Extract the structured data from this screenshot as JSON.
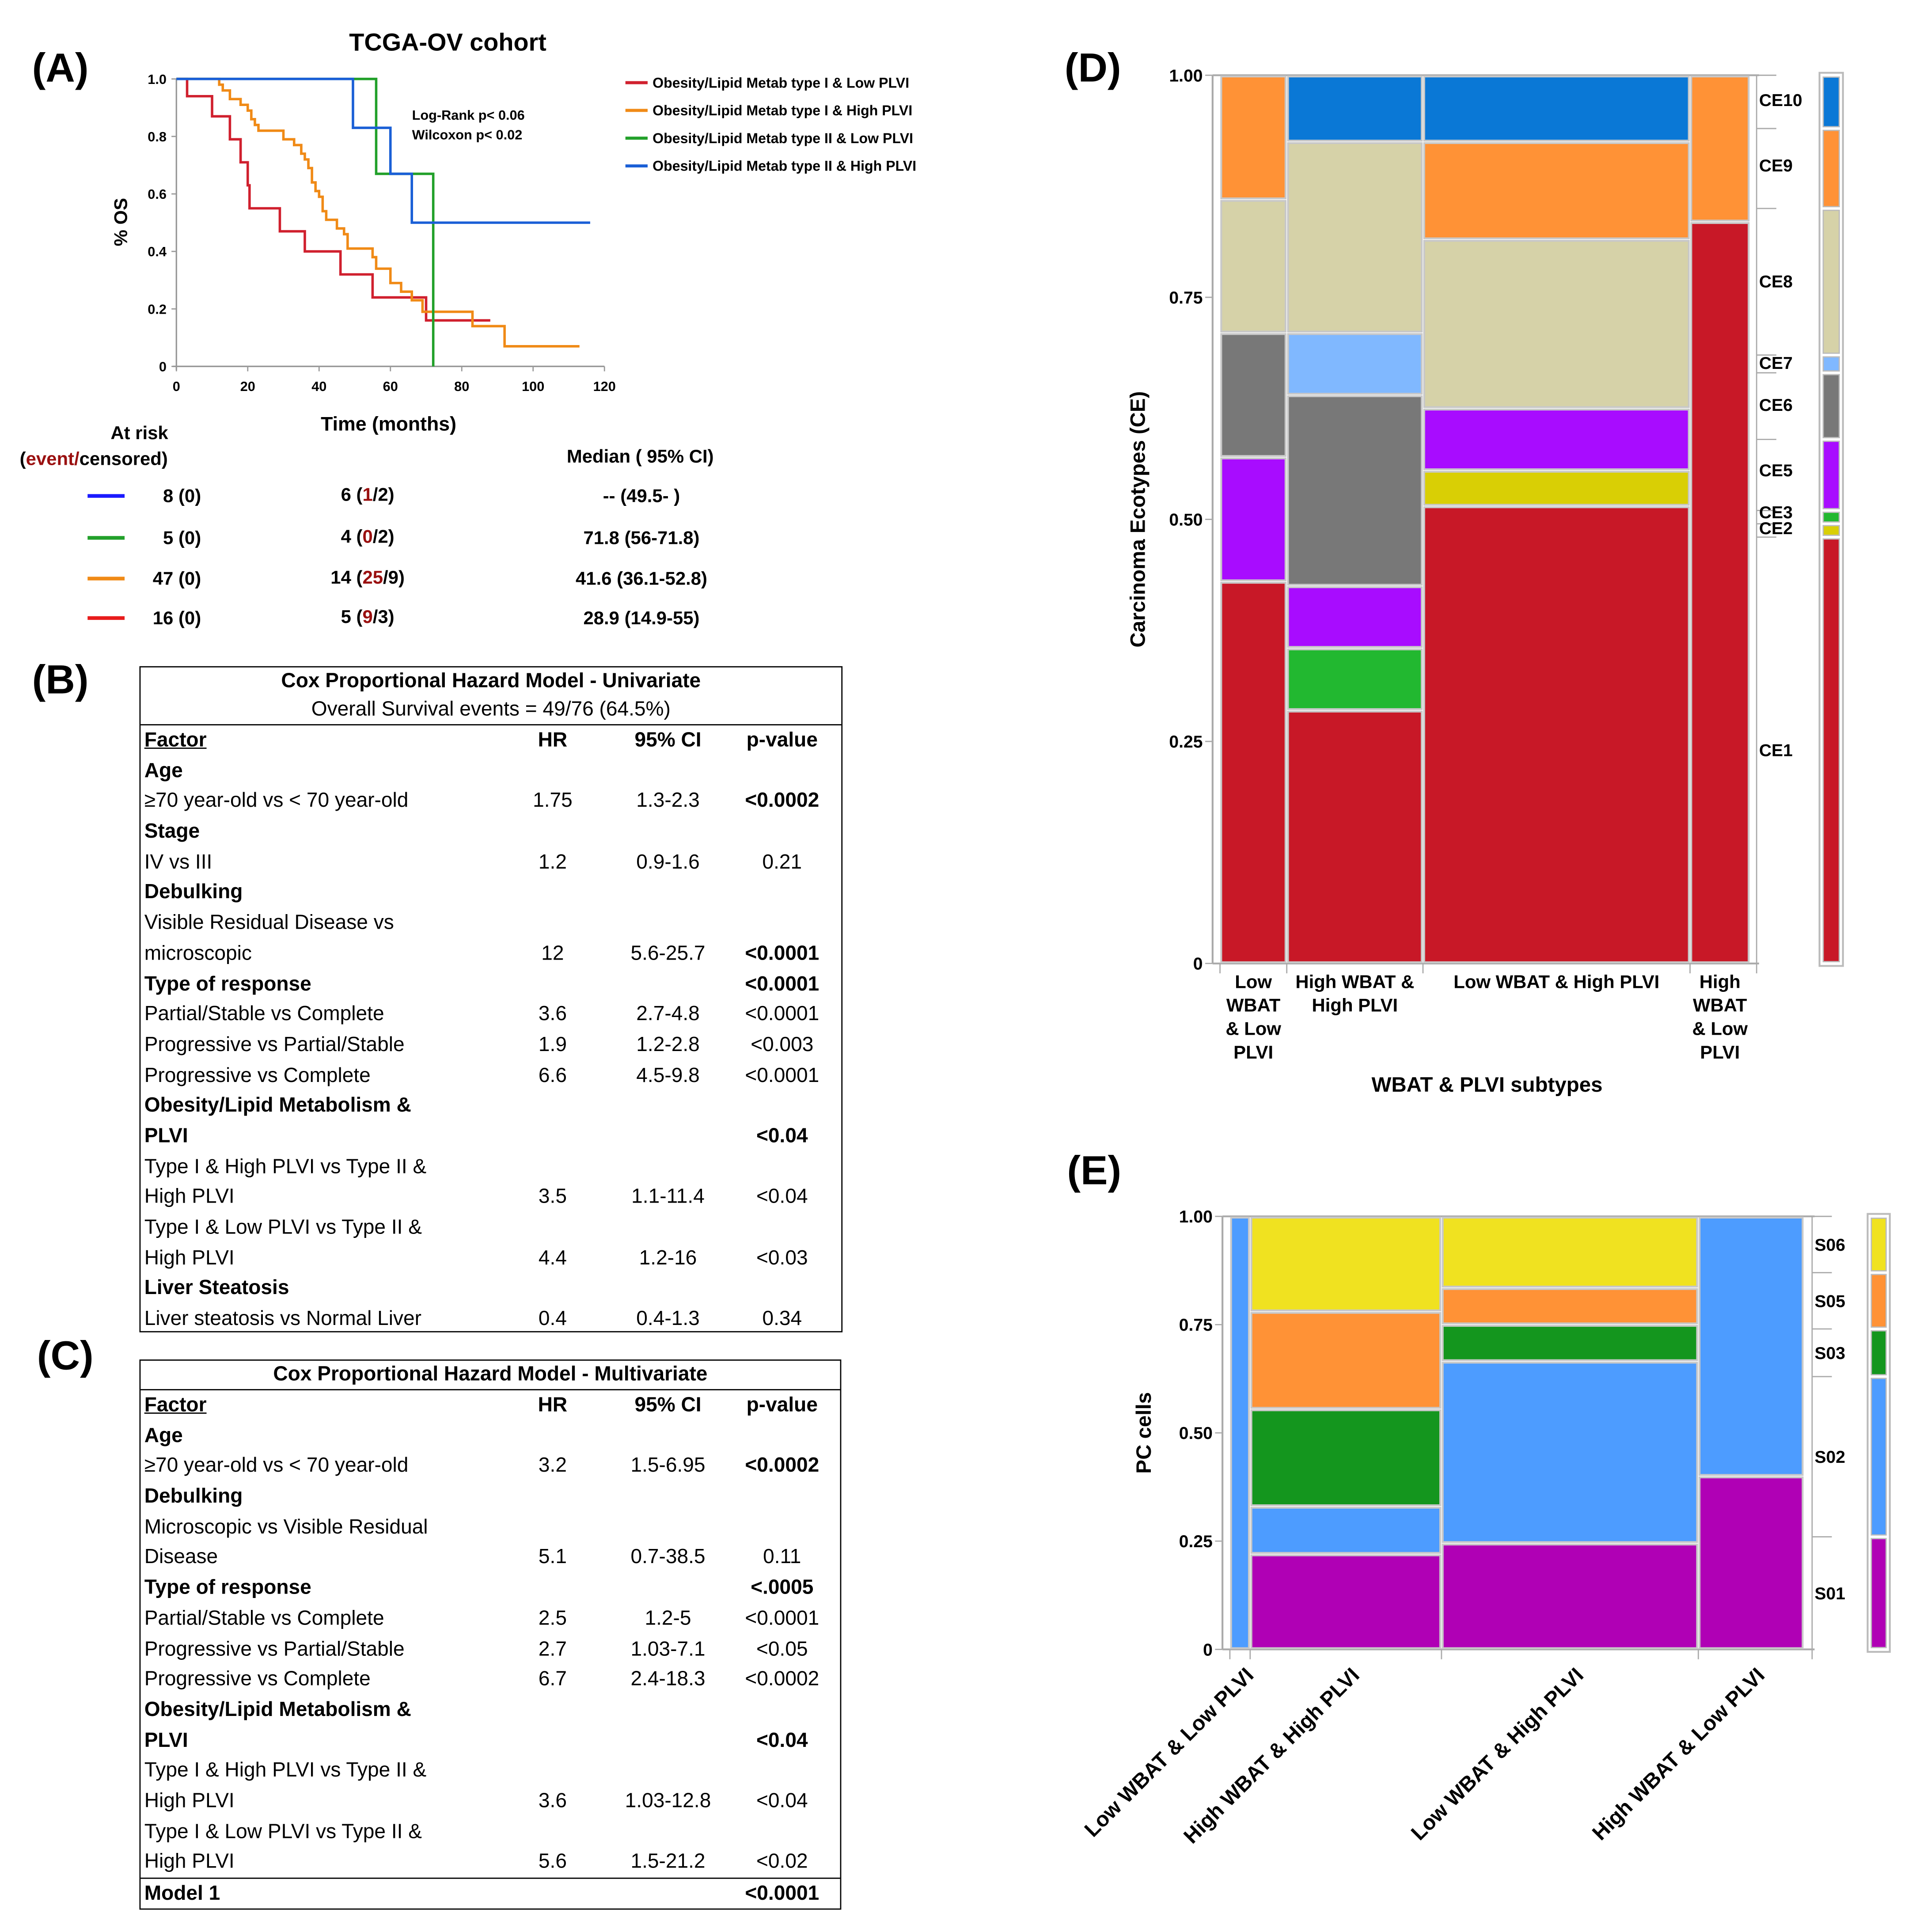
{
  "panels": {
    "A": "(A)",
    "B": "(B)",
    "C": "(C)",
    "D": "(D)",
    "E": "(E)"
  },
  "km": {
    "title": "TCGA-OV cohort",
    "ylabel": "% OS",
    "xlabel": "Time (months)",
    "yticks": [
      "0",
      "0.2",
      "0.4",
      "0.6",
      "0.8",
      "1.0"
    ],
    "xticks": [
      "0",
      "20",
      "40",
      "60",
      "80",
      "100",
      "120"
    ],
    "stats": [
      "Log-Rank p< 0.06",
      "Wilcoxon p< 0.02"
    ],
    "series": [
      {
        "name": "Obesity/Lipid Metab type I & Low PLVI",
        "color": "#d0202e",
        "end": 88,
        "steps": [
          [
            0,
            1
          ],
          [
            3,
            0.94
          ],
          [
            10,
            0.87
          ],
          [
            15,
            0.79
          ],
          [
            18,
            0.71
          ],
          [
            20,
            0.63
          ],
          [
            20.5,
            0.55
          ],
          [
            29,
            0.47
          ],
          [
            36,
            0.4
          ],
          [
            46,
            0.32
          ],
          [
            55,
            0.24
          ],
          [
            70,
            0.16
          ]
        ]
      },
      {
        "name": "Obesity/Lipid Metab type I & High PLVI",
        "color": "#f08a16",
        "end": 113,
        "steps": [
          [
            0,
            1
          ],
          [
            12,
            0.98
          ],
          [
            13,
            0.96
          ],
          [
            15,
            0.93
          ],
          [
            18,
            0.91
          ],
          [
            20,
            0.89
          ],
          [
            21,
            0.86
          ],
          [
            22,
            0.84
          ],
          [
            23,
            0.82
          ],
          [
            30,
            0.79
          ],
          [
            33,
            0.77
          ],
          [
            35,
            0.74
          ],
          [
            36,
            0.72
          ],
          [
            37,
            0.69
          ],
          [
            38,
            0.64
          ],
          [
            39,
            0.61
          ],
          [
            40,
            0.59
          ],
          [
            41,
            0.54
          ],
          [
            42,
            0.51
          ],
          [
            45,
            0.48
          ],
          [
            47,
            0.46
          ],
          [
            48,
            0.41
          ],
          [
            55,
            0.38
          ],
          [
            56,
            0.34
          ],
          [
            60,
            0.29
          ],
          [
            63,
            0.26
          ],
          [
            66,
            0.23
          ],
          [
            69,
            0.19
          ],
          [
            83,
            0.14
          ],
          [
            92,
            0.07
          ]
        ]
      },
      {
        "name": "Obesity/Lipid Metab type II & Low PLVI",
        "color": "#22a02a",
        "end": 72,
        "steps": [
          [
            0,
            1
          ],
          [
            56,
            0.67
          ],
          [
            72,
            0
          ]
        ]
      },
      {
        "name": "Obesity/Lipid Metab type II & High PLVI",
        "color": "#1a5fd6",
        "end": 116,
        "steps": [
          [
            0,
            1
          ],
          [
            49.5,
            0.83
          ],
          [
            60,
            0.67
          ],
          [
            66,
            0.5
          ]
        ]
      }
    ],
    "atrisk_title": "At risk",
    "atrisk_sub": {
      "open": "(",
      "event": "event",
      "slash": "/",
      "censored": "censored)"
    },
    "median_title": "Median ( 95% CI)",
    "risk_rows": [
      {
        "color": "#1a1aff",
        "n0": "8 (0)",
        "n1": "6",
        "ev": "1",
        "ce": "2",
        "median": "-- (49.5- )"
      },
      {
        "color": "#22a02a",
        "n0": "5 (0)",
        "n1": "4",
        "ev": "0",
        "ce": "2",
        "median": "71.8 (56-71.8)"
      },
      {
        "color": "#f08a16",
        "n0": "47 (0)",
        "n1": "14",
        "ev": "25",
        "ce": "9",
        "median": "41.6 (36.1-52.8)"
      },
      {
        "color": "#e81c1c",
        "n0": "16 (0)",
        "n1": "5",
        "ev": "9",
        "ce": "3",
        "median": "28.9 (14.9-55)"
      }
    ]
  },
  "tableB": {
    "title": "Cox Proportional Hazard Model - Univariate",
    "subtitle": "Overall Survival events = 49/76 (64.5%)",
    "columns": [
      "Factor",
      "HR",
      "95% CI",
      "p-value"
    ],
    "rows": [
      {
        "f": "Age",
        "bold": true
      },
      {
        "f": "≥70 year-old vs < 70 year-old",
        "hr": "1.75",
        "ci": "1.3-2.3",
        "p": "<0.0002",
        "pb": true
      },
      {
        "f": "Stage",
        "bold": true
      },
      {
        "f": "IV vs III",
        "hr": "1.2",
        "ci": "0.9-1.6",
        "p": "0.21"
      },
      {
        "f": "Debulking",
        "bold": true
      },
      {
        "f": "Visible Residual Disease vs"
      },
      {
        "f": "microscopic",
        "hr": "12",
        "ci": "5.6-25.7",
        "p": "<0.0001",
        "pb": true
      },
      {
        "f": "Type of response",
        "bold": true,
        "p": "<0.0001",
        "pb": true
      },
      {
        "f": "Partial/Stable vs Complete",
        "hr": "3.6",
        "ci": "2.7-4.8",
        "p": "<0.0001"
      },
      {
        "f": "Progressive vs Partial/Stable",
        "hr": "1.9",
        "ci": "1.2-2.8",
        "p": "<0.003"
      },
      {
        "f": "Progressive vs Complete",
        "hr": "6.6",
        "ci": "4.5-9.8",
        "p": "<0.0001"
      },
      {
        "f": "Obesity/Lipid Metabolism &",
        "bold": true
      },
      {
        "f": "PLVI",
        "bold": true,
        "p": "<0.04",
        "pb": true
      },
      {
        "f": "Type I & High PLVI vs Type II &"
      },
      {
        "f": "High PLVI",
        "hr": "3.5",
        "ci": "1.1-11.4",
        "p": "<0.04"
      },
      {
        "f": "Type I & Low PLVI vs Type II &"
      },
      {
        "f": "High PLVI",
        "hr": "4.4",
        "ci": "1.2-16",
        "p": "<0.03"
      },
      {
        "f": "Liver Steatosis",
        "bold": true
      },
      {
        "f": "Liver steatosis vs Normal Liver",
        "hr": "0.4",
        "ci": "0.4-1.3",
        "p": "0.34"
      }
    ]
  },
  "tableC": {
    "title": "Cox Proportional Hazard Model - Multivariate",
    "columns": [
      "Factor",
      "HR",
      "95% CI",
      "p-value"
    ],
    "rows": [
      {
        "f": "Age",
        "bold": true
      },
      {
        "f": "≥70 year-old vs < 70 year-old",
        "hr": "3.2",
        "ci": "1.5-6.95",
        "p": "<0.0002",
        "pb": true
      },
      {
        "f": "Debulking",
        "bold": true
      },
      {
        "f": "Microscopic vs Visible Residual"
      },
      {
        "f": "Disease",
        "hr": "5.1",
        "ci": "0.7-38.5",
        "p": "0.11"
      },
      {
        "f": "Type of response",
        "bold": true,
        "p": "<.0005",
        "pb": true
      },
      {
        "f": "Partial/Stable vs Complete",
        "hr": "2.5",
        "ci": "1.2-5",
        "p": "<0.0001"
      },
      {
        "f": "Progressive vs Partial/Stable",
        "hr": "2.7",
        "ci": "1.03-7.1",
        "p": "<0.05"
      },
      {
        "f": "Progressive vs Complete",
        "hr": "6.7",
        "ci": "2.4-18.3",
        "p": "<0.0002"
      },
      {
        "f": "Obesity/Lipid Metabolism &",
        "bold": true
      },
      {
        "f": "PLVI",
        "bold": true,
        "p": "<0.04",
        "pb": true
      },
      {
        "f": "Type I & High PLVI vs Type II &"
      },
      {
        "f": "High PLVI",
        "hr": "3.6",
        "ci": "1.03-12.8",
        "p": "<0.04"
      },
      {
        "f": "Type I & Low PLVI vs Type II &"
      },
      {
        "f": "High PLVI",
        "hr": "5.6",
        "ci": "1.5-21.2",
        "p": "<0.02"
      },
      {
        "f": "Model 1",
        "bold": true,
        "p": "<0.0001",
        "pb": true,
        "topline": true
      }
    ]
  },
  "chart_data": [
    {
      "type": "line",
      "title": "TCGA-OV cohort",
      "xlabel": "Time (months)",
      "ylabel": "% OS",
      "xlim": [
        0,
        120
      ],
      "ylim": [
        0,
        1
      ],
      "note": "Kaplan-Meier curves; see km.series"
    },
    {
      "type": "mosaic",
      "ylabel": "Carcinoma Ecotypes (CE)",
      "xlabel": "WBAT & PLVI subtypes",
      "yticks": [
        "0",
        "0.25",
        "0.50",
        "0.75",
        "1.00"
      ],
      "categories": [
        {
          "label": [
            "Low",
            "WBAT",
            "& Low",
            "PLVI"
          ],
          "width": 0.125,
          "segments": [
            [
              "CE1",
              0.43
            ],
            [
              "CE5",
              0.14
            ],
            [
              "CE6",
              0.14
            ],
            [
              "CE8",
              0.15
            ],
            [
              "CE9",
              0.14
            ]
          ]
        },
        {
          "label": [
            "High WBAT &",
            "High PLVI"
          ],
          "width": 0.255,
          "segments": [
            [
              "CE1",
              0.285
            ],
            [
              "CE3",
              0.07
            ],
            [
              "CE5",
              0.07
            ],
            [
              "CE6",
              0.215
            ],
            [
              "CE7",
              0.07
            ],
            [
              "CE8",
              0.215
            ],
            [
              "CE10",
              0.075
            ]
          ]
        },
        {
          "label": [
            "Low WBAT & High PLVI"
          ],
          "width": 0.5,
          "segments": [
            [
              "CE1",
              0.515
            ],
            [
              "CE2",
              0.04
            ],
            [
              "CE5",
              0.07
            ],
            [
              "CE8",
              0.19
            ],
            [
              "CE9",
              0.11
            ],
            [
              "CE10",
              0.075
            ]
          ]
        },
        {
          "label": [
            "High",
            "WBAT",
            "& Low",
            "PLVI"
          ],
          "width": 0.112,
          "segments": [
            [
              "CE1",
              0.835
            ],
            [
              "CE9",
              0.165
            ]
          ]
        }
      ],
      "marginal": [
        [
          "CE1",
          0.48
        ],
        [
          "CE2",
          0.015
        ],
        [
          "CE3",
          0.015
        ],
        [
          "CE5",
          0.08
        ],
        [
          "CE6",
          0.075
        ],
        [
          "CE7",
          0.02
        ],
        [
          "CE8",
          0.165
        ],
        [
          "CE9",
          0.09
        ],
        [
          "CE10",
          0.06
        ]
      ],
      "legend": [
        "CE10",
        "CE9",
        "CE8",
        "CE7",
        "CE6",
        "CE5",
        "CE3",
        "CE2",
        "CE1"
      ],
      "colors": {
        "CE1": "#c81827",
        "CE2": "#d9cf05",
        "CE3": "#22b830",
        "CE5": "#a80cff",
        "CE6": "#787878",
        "CE7": "#80b8ff",
        "CE8": "#d6d2a8",
        "CE9": "#ff9236",
        "CE10": "#0a78d6"
      }
    },
    {
      "type": "mosaic",
      "ylabel": "PC cells",
      "xlabel": "",
      "yticks": [
        "0",
        "0.25",
        "0.50",
        "0.75",
        "1.00"
      ],
      "categories": [
        {
          "label": [
            "Low WBAT & Low PLVI"
          ],
          "width": 0.035,
          "segments": [
            [
              "S02",
              1.0
            ]
          ]
        },
        {
          "label": [
            "High WBAT & High PLVI"
          ],
          "width": 0.33,
          "segments": [
            [
              "S01",
              0.22
            ],
            [
              "S02",
              0.11
            ],
            [
              "S03",
              0.225
            ],
            [
              "S05",
              0.225
            ],
            [
              "S06",
              0.22
            ]
          ]
        },
        {
          "label": [
            "Low WBAT & High PLVI"
          ],
          "width": 0.443,
          "segments": [
            [
              "S01",
              0.245
            ],
            [
              "S02",
              0.42
            ],
            [
              "S03",
              0.085
            ],
            [
              "S05",
              0.085
            ],
            [
              "S06",
              0.165
            ]
          ]
        },
        {
          "label": [
            "High WBAT & Low PLVI"
          ],
          "width": 0.182,
          "segments": [
            [
              "S01",
              0.4
            ],
            [
              "S02",
              0.6
            ]
          ]
        }
      ],
      "marginal": [
        [
          "S01",
          0.26
        ],
        [
          "S02",
          0.37
        ],
        [
          "S03",
          0.11
        ],
        [
          "S05",
          0.13
        ],
        [
          "S06",
          0.13
        ]
      ],
      "legend": [
        "S06",
        "S05",
        "S03",
        "S02",
        "S01"
      ],
      "colors": {
        "S01": "#b000b5",
        "S02": "#4d9cff",
        "S03": "#14961e",
        "S05": "#ff9236",
        "S06": "#f0e220"
      }
    }
  ]
}
